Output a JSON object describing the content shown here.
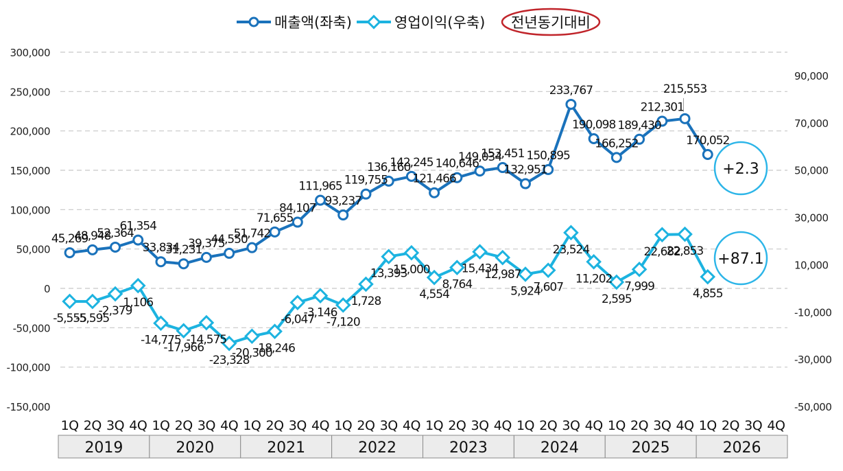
{
  "legend": {
    "revenue_label": "매출액(좌축)",
    "op_label": "영업이익(우축)",
    "yoy_label": "전년동기대비"
  },
  "colors": {
    "revenue": "#1a72bb",
    "op": "#1cb3e0",
    "yoy_ring": "#c0242a",
    "badge_ring": "#2cb5e8",
    "grid": "#c8c8c8",
    "year_box": "#ececec"
  },
  "badges": {
    "revenue_yoy": "+2.3",
    "op_yoy": "+87.1"
  },
  "chart_data": {
    "type": "line",
    "years": [
      "2019",
      "2020",
      "2021",
      "2022",
      "2023",
      "2024",
      "2025",
      "2026"
    ],
    "quarters": [
      "1Q",
      "2Q",
      "3Q",
      "4Q"
    ],
    "series": [
      {
        "name": "매출액(좌축)",
        "axis": "left",
        "values": [
          45269,
          48948,
          52364,
          61354,
          33834,
          31231,
          39375,
          44550,
          51742,
          71655,
          84107,
          111965,
          93237,
          119755,
          136160,
          142245,
          121466,
          140646,
          149034,
          153451,
          132951,
          150895,
          233767,
          190098,
          166252,
          189430,
          212301,
          215553,
          170052
        ],
        "labels": [
          "45,269",
          "48,948",
          "52,364",
          "61,354",
          "33,834",
          "31,231",
          "39,375",
          "44,550",
          "51,742",
          "71,655",
          "84,107",
          "111,965",
          "93,237",
          "119,755",
          "136,160",
          "142,245",
          "121,466",
          "140,646",
          "149,034",
          "153,451",
          "132,951",
          "150,895",
          "233,767",
          "190,098",
          "166,252",
          "189,430",
          "212,301",
          "215,553",
          "170,052"
        ]
      },
      {
        "name": "영업이익(우축)",
        "axis": "right",
        "values": [
          -5555,
          -5595,
          -2379,
          1106,
          -14775,
          -17966,
          -14575,
          -23328,
          -20300,
          -18246,
          -6047,
          -3146,
          -7120,
          1728,
          13393,
          15000,
          4554,
          8764,
          15434,
          12987,
          5924,
          7607,
          23524,
          11202,
          2595,
          7999,
          22682,
          22853,
          4855
        ],
        "labels": [
          "-5,555",
          "-5,595",
          "-2,379",
          "1,106",
          "-14,775",
          "-17,966",
          "-14,575",
          "-23,328",
          "-20,300",
          "-18,246",
          "-6,047",
          "-3,146",
          "-7,120",
          "1,728",
          "13,393",
          "15,000",
          "4,554",
          "8,764",
          "15,434",
          "12,987",
          "5,924",
          "7,607",
          "23,524",
          "11,202",
          "2,595",
          "7,999",
          "22,682",
          "22,853",
          "4,855"
        ]
      }
    ],
    "left_axis": {
      "ylim": [
        -150000,
        300000
      ],
      "ticks": [
        "300,000",
        "250,000",
        "200,000",
        "150,000",
        "100,000",
        "50,000",
        "0",
        "-50,000",
        "-100,000",
        "-150,000"
      ]
    },
    "right_axis": {
      "ylim": [
        -50000,
        90000
      ],
      "ticks": [
        "90,000",
        "70,000",
        "50,000",
        "30,000",
        "10,000",
        "-10,000",
        "-30,000",
        "-50,000"
      ]
    },
    "grid": true,
    "legend_position": "top-center"
  }
}
